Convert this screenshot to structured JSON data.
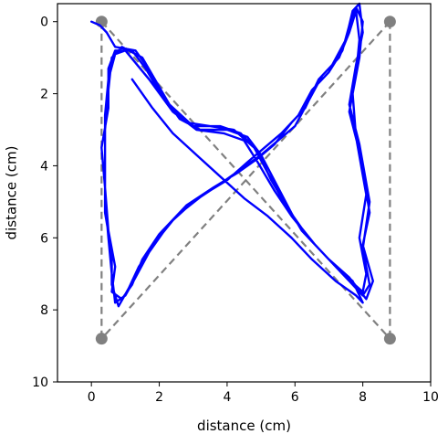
{
  "chart_data": {
    "type": "line",
    "title": "",
    "xlabel": "distance (cm)",
    "ylabel": "distance (cm)",
    "xlim": [
      -1,
      10
    ],
    "ylim": [
      10,
      -0.5
    ],
    "y_inverted": true,
    "grid": false,
    "x_ticks": [
      0,
      2,
      4,
      6,
      8,
      10
    ],
    "y_ticks": [
      0,
      2,
      4,
      6,
      8,
      10
    ],
    "colors": {
      "path": "#0000ff",
      "reference": "#808080"
    },
    "reference_points": [
      {
        "x": 0.3,
        "y": 0.0
      },
      {
        "x": 8.8,
        "y": 0.0
      },
      {
        "x": 0.3,
        "y": 8.8
      },
      {
        "x": 8.8,
        "y": 8.8
      }
    ],
    "reference_lines": [
      {
        "from": [
          0.3,
          0.0
        ],
        "to": [
          0.3,
          8.8
        ]
      },
      {
        "from": [
          8.8,
          0.0
        ],
        "to": [
          8.8,
          8.8
        ]
      },
      {
        "from": [
          0.3,
          0.0
        ],
        "to": [
          8.8,
          8.8
        ]
      },
      {
        "from": [
          8.8,
          0.0
        ],
        "to": [
          0.3,
          8.8
        ]
      }
    ],
    "series": [
      {
        "values": [
          [
            0.0,
            0.0
          ],
          [
            0.25,
            0.1
          ],
          [
            0.45,
            0.3
          ],
          [
            0.7,
            0.7
          ],
          [
            1.3,
            0.8
          ],
          [
            1.6,
            1.2
          ],
          [
            2.0,
            1.9
          ],
          [
            2.6,
            2.7
          ],
          [
            3.2,
            3.0
          ],
          [
            4.0,
            3.0
          ],
          [
            4.6,
            3.2
          ],
          [
            5.0,
            3.7
          ],
          [
            5.5,
            4.6
          ],
          [
            6.0,
            5.5
          ],
          [
            6.6,
            6.2
          ],
          [
            7.2,
            6.8
          ],
          [
            7.7,
            7.3
          ],
          [
            8.0,
            7.6
          ],
          [
            8.2,
            7.3
          ],
          [
            8.0,
            6.3
          ],
          [
            8.2,
            5.0
          ],
          [
            7.9,
            3.4
          ],
          [
            7.6,
            2.3
          ],
          [
            7.8,
            1.2
          ],
          [
            8.0,
            0.3
          ],
          [
            7.9,
            -0.5
          ],
          [
            7.7,
            -0.3
          ],
          [
            7.5,
            0.5
          ],
          [
            7.1,
            1.2
          ],
          [
            6.7,
            1.6
          ],
          [
            6.3,
            2.4
          ],
          [
            5.9,
            2.8
          ],
          [
            5.4,
            3.4
          ],
          [
            4.9,
            3.8
          ],
          [
            4.3,
            4.2
          ],
          [
            3.6,
            4.6
          ],
          [
            2.8,
            5.1
          ],
          [
            2.0,
            5.9
          ],
          [
            1.5,
            6.6
          ],
          [
            1.2,
            7.3
          ],
          [
            0.9,
            7.7
          ],
          [
            0.6,
            7.5
          ],
          [
            0.7,
            6.8
          ],
          [
            0.5,
            5.8
          ],
          [
            0.4,
            4.6
          ],
          [
            0.3,
            3.5
          ],
          [
            0.5,
            2.4
          ],
          [
            0.5,
            1.3
          ],
          [
            0.7,
            0.8
          ],
          [
            1.2,
            0.8
          ],
          [
            1.6,
            1.3
          ],
          [
            2.1,
            2.1
          ],
          [
            2.8,
            2.8
          ],
          [
            3.5,
            2.9
          ],
          [
            4.2,
            3.0
          ],
          [
            4.8,
            3.5
          ],
          [
            5.2,
            4.2
          ],
          [
            5.7,
            5.0
          ],
          [
            6.2,
            5.8
          ],
          [
            6.8,
            6.4
          ],
          [
            7.4,
            7.0
          ],
          [
            8.0,
            7.5
          ],
          [
            8.1,
            7.0
          ],
          [
            7.9,
            6.0
          ],
          [
            8.1,
            4.8
          ],
          [
            7.8,
            3.2
          ],
          [
            7.7,
            2.0
          ],
          [
            7.9,
            1.0
          ],
          [
            8.0,
            0.0
          ],
          [
            7.8,
            -0.4
          ],
          [
            7.6,
            0.1
          ],
          [
            7.4,
            0.8
          ],
          [
            7.0,
            1.4
          ],
          [
            6.5,
            1.9
          ],
          [
            6.1,
            2.6
          ],
          [
            5.6,
            3.1
          ],
          [
            5.1,
            3.5
          ],
          [
            4.6,
            3.9
          ],
          [
            4.0,
            4.4
          ],
          [
            3.3,
            4.8
          ],
          [
            2.5,
            5.4
          ],
          [
            1.9,
            6.1
          ],
          [
            1.4,
            6.8
          ],
          [
            1.1,
            7.4
          ],
          [
            0.8,
            7.9
          ],
          [
            0.6,
            7.3
          ],
          [
            0.6,
            6.4
          ],
          [
            0.4,
            5.3
          ],
          [
            0.4,
            4.1
          ],
          [
            0.4,
            3.0
          ],
          [
            0.5,
            1.9
          ],
          [
            0.6,
            1.0
          ],
          [
            0.9,
            0.7
          ],
          [
            1.5,
            1.0
          ],
          [
            2.3,
            2.3
          ],
          [
            3.0,
            2.9
          ],
          [
            3.8,
            2.9
          ],
          [
            4.4,
            3.1
          ],
          [
            4.9,
            3.6
          ],
          [
            5.3,
            4.4
          ],
          [
            5.8,
            5.2
          ],
          [
            6.4,
            6.0
          ],
          [
            7.0,
            6.6
          ],
          [
            7.6,
            7.1
          ],
          [
            8.1,
            7.7
          ],
          [
            8.3,
            7.2
          ],
          [
            8.0,
            6.2
          ],
          [
            8.2,
            5.3
          ],
          [
            7.9,
            3.6
          ],
          [
            7.6,
            2.5
          ],
          [
            7.8,
            1.5
          ],
          [
            7.9,
            0.5
          ],
          [
            7.8,
            -0.3
          ],
          [
            7.6,
            0.3
          ],
          [
            7.3,
            1.0
          ],
          [
            6.8,
            1.5
          ],
          [
            6.4,
            2.2
          ],
          [
            6.0,
            2.9
          ],
          [
            5.5,
            3.3
          ],
          [
            5.0,
            3.7
          ],
          [
            4.4,
            4.1
          ],
          [
            3.8,
            4.5
          ],
          [
            3.0,
            5.0
          ],
          [
            2.3,
            5.6
          ],
          [
            1.7,
            6.4
          ],
          [
            1.3,
            7.1
          ],
          [
            1.0,
            7.6
          ],
          [
            0.7,
            7.8
          ],
          [
            0.6,
            7.0
          ],
          [
            0.5,
            6.0
          ],
          [
            0.4,
            4.9
          ],
          [
            0.4,
            3.7
          ],
          [
            0.4,
            2.6
          ],
          [
            0.5,
            1.6
          ],
          [
            0.7,
            0.9
          ],
          [
            1.0,
            0.8
          ],
          [
            1.7,
            1.6
          ],
          [
            2.4,
            2.5
          ],
          [
            3.1,
            3.0
          ],
          [
            3.9,
            3.1
          ],
          [
            4.5,
            3.3
          ],
          [
            4.9,
            3.9
          ],
          [
            5.4,
            4.7
          ],
          [
            5.9,
            5.4
          ],
          [
            6.5,
            6.1
          ],
          [
            7.1,
            6.7
          ],
          [
            7.7,
            7.2
          ],
          [
            8.0,
            7.8
          ],
          [
            7.8,
            7.6
          ],
          [
            7.2,
            7.2
          ],
          [
            6.5,
            6.6
          ],
          [
            5.9,
            6.0
          ],
          [
            5.2,
            5.4
          ],
          [
            4.5,
            4.9
          ],
          [
            3.8,
            4.3
          ],
          [
            3.1,
            3.7
          ],
          [
            2.4,
            3.1
          ],
          [
            1.8,
            2.4
          ],
          [
            1.2,
            1.6
          ]
        ]
      }
    ]
  }
}
